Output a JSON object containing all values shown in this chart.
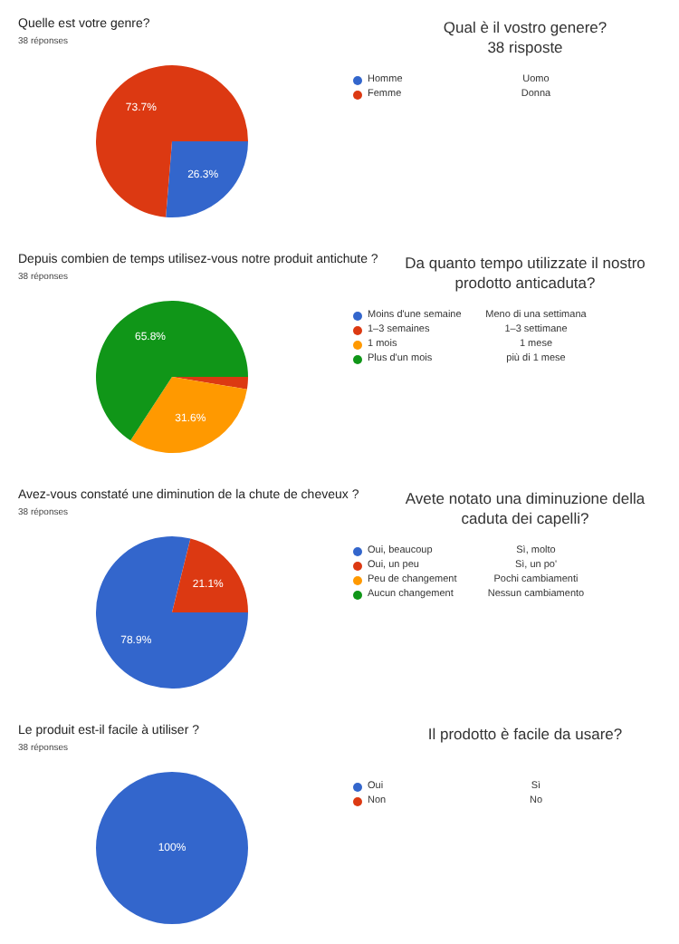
{
  "chart_data": [
    {
      "type": "pie",
      "title": "Quelle est votre genre?",
      "subtitle": "38 réponses",
      "categories": [
        "Homme",
        "Femme"
      ],
      "values": [
        26.3,
        73.7
      ],
      "colors": [
        "#3366cc",
        "#dc3912"
      ],
      "value_labels": [
        "26.3%",
        "73.7%"
      ],
      "legend": "right",
      "annotations": [
        "Qual è il vostro genere?\n38 risposte",
        "Uomo",
        "Donna"
      ]
    },
    {
      "type": "pie",
      "title": "Depuis combien de temps utilisez-vous notre produit antichute ?",
      "subtitle": "38 réponses",
      "categories": [
        "Moins d'une semaine",
        "1–3 semaines",
        "1 mois",
        "Plus d'un mois"
      ],
      "values": [
        0,
        2.6,
        31.6,
        65.8
      ],
      "colors": [
        "#3366cc",
        "#dc3912",
        "#ff9900",
        "#109618"
      ],
      "value_labels": [
        null,
        null,
        "31.6%",
        "65.8%"
      ],
      "legend": "right",
      "annotations": [
        "Da quanto tempo utilizzate il nostro prodotto anticaduta?",
        "Meno di una settimana",
        "1–3 settimane",
        "1 mese",
        "più di 1 mese"
      ]
    },
    {
      "type": "pie",
      "title": "Avez-vous constaté une diminution de la chute de cheveux ?",
      "subtitle": "38 réponses",
      "categories": [
        "Oui, beaucoup",
        "Oui, un peu",
        "Peu de changement",
        "Aucun changement"
      ],
      "values": [
        78.9,
        21.1,
        0,
        0
      ],
      "colors": [
        "#3366cc",
        "#dc3912",
        "#ff9900",
        "#109618"
      ],
      "value_labels": [
        "78.9%",
        "21.1%",
        null,
        null
      ],
      "legend": "right",
      "annotations": [
        "Avete notato una diminuzione della caduta dei capelli?",
        "Sì, molto",
        "Sì, un po'",
        "Pochi cambiamenti",
        "Nessun cambiamento"
      ]
    },
    {
      "type": "pie",
      "title": "Le produit est-il facile à utiliser ?",
      "subtitle": "38 réponses",
      "categories": [
        "Oui",
        "Non"
      ],
      "values": [
        100,
        0
      ],
      "colors": [
        "#3366cc",
        "#dc3912"
      ],
      "value_labels": [
        "100%",
        null
      ],
      "legend": "right",
      "annotations": [
        "Il prodotto è facile da usare?",
        "Sì",
        "No"
      ]
    }
  ]
}
